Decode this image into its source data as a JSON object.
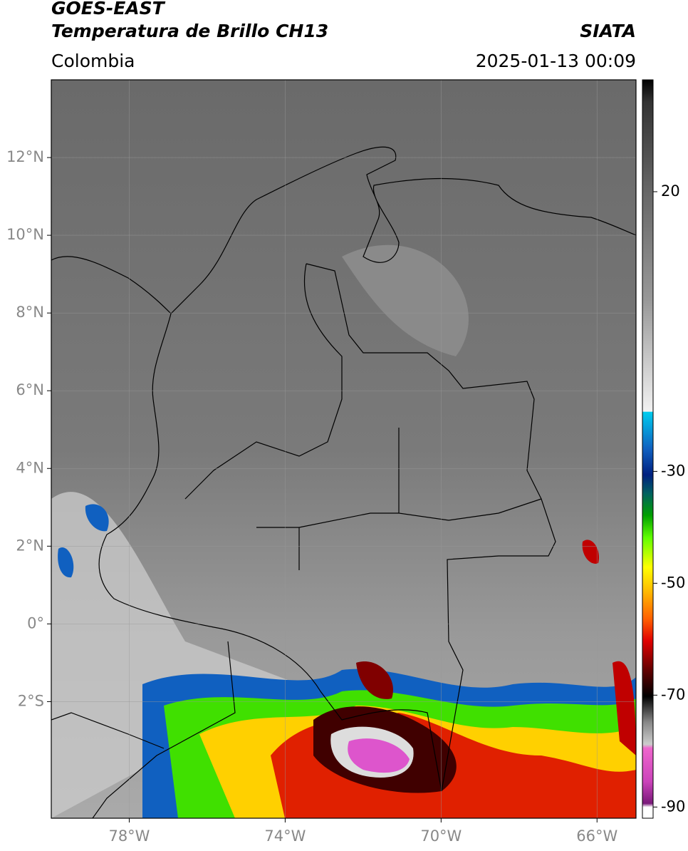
{
  "header": {
    "title": "GOES-EAST",
    "subtitle": "Temperatura de Brillo CH13",
    "region": "Colombia",
    "source": "SIATA",
    "datetime": "2025-01-13 00:09"
  },
  "map": {
    "xlim": [
      -80,
      -65
    ],
    "ylim": [
      -5,
      14
    ],
    "xticks": [
      {
        "value": -78,
        "label": "78°W"
      },
      {
        "value": -74,
        "label": "74°W"
      },
      {
        "value": -70,
        "label": "70°W"
      },
      {
        "value": -66,
        "label": "66°W"
      }
    ],
    "yticks": [
      {
        "value": 12,
        "label": "12°N"
      },
      {
        "value": 10,
        "label": "10°N"
      },
      {
        "value": 8,
        "label": "8°N"
      },
      {
        "value": 6,
        "label": "6°N"
      },
      {
        "value": 4,
        "label": "4°N"
      },
      {
        "value": 2,
        "label": "2°N"
      },
      {
        "value": 0,
        "label": "0°"
      },
      {
        "value": -2,
        "label": "2°S"
      }
    ],
    "grid": true
  },
  "colorbar": {
    "lim": [
      -92,
      40
    ],
    "ticks": [
      20,
      -30,
      -50,
      -70,
      -90
    ]
  }
}
